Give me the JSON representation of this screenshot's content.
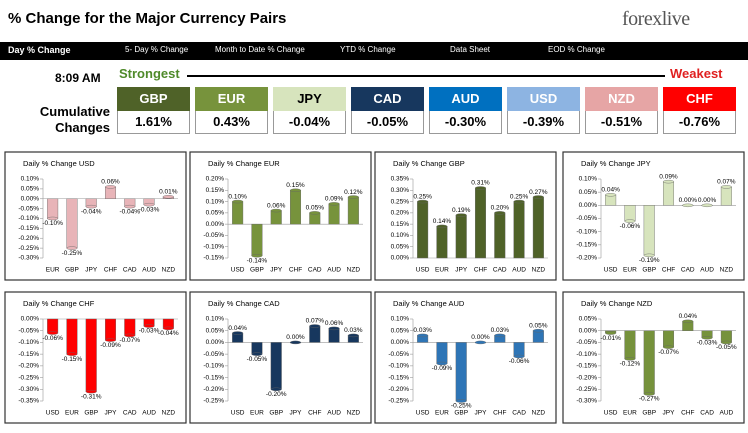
{
  "header": {
    "title": "% Change for the Major Currency Pairs",
    "logo": "forexlive"
  },
  "tabs": [
    "Day % Change",
    "5- Day % Change",
    "Month to Date % Change",
    "YTD % Change",
    "Data Sheet",
    "EOD % Change"
  ],
  "time": "8:09 AM",
  "strongest_label": "Strongest",
  "weakest_label": "Weakest",
  "cumulative_label": "Cumulative Changes",
  "ranking": [
    {
      "currency": "GBP",
      "change": "1.61%",
      "color": "#4f6228"
    },
    {
      "currency": "EUR",
      "change": "0.43%",
      "color": "#77933c"
    },
    {
      "currency": "JPY",
      "change": "-0.04%",
      "color": "#d7e4bd"
    },
    {
      "currency": "CAD",
      "change": "-0.05%",
      "color": "#17375e"
    },
    {
      "currency": "AUD",
      "change": "-0.30%",
      "color": "#0070c0"
    },
    {
      "currency": "USD",
      "change": "-0.39%",
      "color": "#8db4e2"
    },
    {
      "currency": "NZD",
      "change": "-0.51%",
      "color": "#e6a5a5"
    },
    {
      "currency": "CHF",
      "change": "-0.76%",
      "color": "#ff0000"
    }
  ],
  "chart_data": [
    {
      "type": "bar",
      "title": "Daily % Change USD",
      "categories": [
        "EUR",
        "GBP",
        "JPY",
        "CHF",
        "CAD",
        "AUD",
        "NZD"
      ],
      "values": [
        -0.1,
        -0.25,
        -0.04,
        0.06,
        -0.04,
        -0.03,
        0.01
      ],
      "value_labels": [
        "-0.10%",
        "-0.25%",
        "-0.04%",
        "0.06%",
        "-0.04%",
        "-0.03%",
        "0.01%"
      ],
      "color": "#e8b4b8",
      "ylim": [
        -0.3,
        0.1
      ],
      "yticks": [
        {
          "value": 0.1,
          "label": "0.10%"
        },
        {
          "value": 0.05,
          "label": "0.05%"
        },
        {
          "value": 0,
          "label": "0.00%"
        },
        {
          "value": -0.05,
          "label": "-0.05%"
        },
        {
          "value": -0.1,
          "label": "-0.10%"
        },
        {
          "value": -0.15,
          "label": "-0.15%"
        },
        {
          "value": -0.2,
          "label": "-0.20%"
        },
        {
          "value": -0.25,
          "label": "-0.25%"
        },
        {
          "value": -0.3,
          "label": "-0.30%"
        }
      ]
    },
    {
      "type": "bar",
      "title": "Daily % Change EUR",
      "categories": [
        "USD",
        "GBP",
        "JPY",
        "CHF",
        "CAD",
        "AUD",
        "NZD"
      ],
      "values": [
        0.1,
        -0.14,
        0.06,
        0.15,
        0.05,
        0.09,
        0.12
      ],
      "value_labels": [
        "0.10%",
        "-0.14%",
        "0.06%",
        "0.15%",
        "0.05%",
        "0.09%",
        "0.12%"
      ],
      "color": "#77933c",
      "ylim": [
        -0.15,
        0.2
      ],
      "yticks": [
        {
          "value": 0.2,
          "label": "0.20%"
        },
        {
          "value": 0.15,
          "label": "0.15%"
        },
        {
          "value": 0.1,
          "label": "0.10%"
        },
        {
          "value": 0.05,
          "label": "0.05%"
        },
        {
          "value": 0,
          "label": "0.00%"
        },
        {
          "value": -0.05,
          "label": "-0.05%"
        },
        {
          "value": -0.1,
          "label": "-0.10%"
        },
        {
          "value": -0.15,
          "label": "-0.15%"
        }
      ]
    },
    {
      "type": "bar",
      "title": "Daily % Change GBP",
      "categories": [
        "USD",
        "EUR",
        "JPY",
        "CHF",
        "CAD",
        "AUD",
        "NZD"
      ],
      "values": [
        0.25,
        0.14,
        0.19,
        0.31,
        0.2,
        0.25,
        0.27
      ],
      "value_labels": [
        "0.25%",
        "0.14%",
        "0.19%",
        "0.31%",
        "0.20%",
        "0.25%",
        "0.27%"
      ],
      "color": "#4f6228",
      "ylim": [
        0,
        0.35
      ],
      "yticks": [
        {
          "value": 0.35,
          "label": "0.35%"
        },
        {
          "value": 0.3,
          "label": "0.30%"
        },
        {
          "value": 0.25,
          "label": "0.25%"
        },
        {
          "value": 0.2,
          "label": "0.20%"
        },
        {
          "value": 0.15,
          "label": "0.15%"
        },
        {
          "value": 0.1,
          "label": "0.10%"
        },
        {
          "value": 0.05,
          "label": "0.05%"
        },
        {
          "value": 0,
          "label": "0.00%"
        }
      ]
    },
    {
      "type": "bar",
      "title": "Daily % Change JPY",
      "categories": [
        "USD",
        "EUR",
        "GBP",
        "CHF",
        "CAD",
        "AUD",
        "NZD"
      ],
      "values": [
        0.04,
        -0.06,
        -0.19,
        0.09,
        0,
        0,
        0.07
      ],
      "value_labels": [
        "0.04%",
        "-0.06%",
        "-0.19%",
        "0.09%",
        "0.00%",
        "0.00%",
        "0.07%"
      ],
      "color": "#d7e4bd",
      "ylim": [
        -0.2,
        0.1
      ],
      "yticks": [
        {
          "value": 0.1,
          "label": "0.10%"
        },
        {
          "value": 0.05,
          "label": "0.05%"
        },
        {
          "value": 0,
          "label": "0.00%"
        },
        {
          "value": -0.05,
          "label": "-0.05%"
        },
        {
          "value": -0.1,
          "label": "-0.10%"
        },
        {
          "value": -0.15,
          "label": "-0.15%"
        },
        {
          "value": -0.2,
          "label": "-0.20%"
        }
      ]
    },
    {
      "type": "bar",
      "title": "Daily % Change CHF",
      "categories": [
        "USD",
        "EUR",
        "GBP",
        "JPY",
        "CAD",
        "AUD",
        "NZD"
      ],
      "values": [
        -0.06,
        -0.15,
        -0.31,
        -0.09,
        -0.07,
        -0.03,
        -0.04
      ],
      "value_labels": [
        "-0.06%",
        "-0.15%",
        "-0.31%",
        "-0.09%",
        "-0.07%",
        "-0.03%",
        "-0.04%"
      ],
      "color": "#ff0000",
      "ylim": [
        -0.35,
        0
      ],
      "yticks": [
        {
          "value": 0,
          "label": "0.00%"
        },
        {
          "value": -0.05,
          "label": "-0.05%"
        },
        {
          "value": -0.1,
          "label": "-0.10%"
        },
        {
          "value": -0.15,
          "label": "-0.15%"
        },
        {
          "value": -0.2,
          "label": "-0.20%"
        },
        {
          "value": -0.25,
          "label": "-0.25%"
        },
        {
          "value": -0.3,
          "label": "-0.30%"
        },
        {
          "value": -0.35,
          "label": "-0.35%"
        }
      ]
    },
    {
      "type": "bar",
      "title": "Daily % Change CAD",
      "categories": [
        "USD",
        "EUR",
        "GBP",
        "JPY",
        "CHF",
        "AUD",
        "NZD"
      ],
      "values": [
        0.04,
        -0.05,
        -0.2,
        0,
        0.07,
        0.06,
        0.03
      ],
      "value_labels": [
        "0.04%",
        "-0.05%",
        "-0.20%",
        "0.00%",
        "0.07%",
        "0.06%",
        "0.03%"
      ],
      "color": "#17375e",
      "ylim": [
        -0.25,
        0.1
      ],
      "yticks": [
        {
          "value": 0.1,
          "label": "0.10%"
        },
        {
          "value": 0.05,
          "label": "0.05%"
        },
        {
          "value": 0,
          "label": "0.00%"
        },
        {
          "value": -0.05,
          "label": "-0.05%"
        },
        {
          "value": -0.1,
          "label": "-0.10%"
        },
        {
          "value": -0.15,
          "label": "-0.15%"
        },
        {
          "value": -0.2,
          "label": "-0.20%"
        },
        {
          "value": -0.25,
          "label": "-0.25%"
        }
      ]
    },
    {
      "type": "bar",
      "title": "Daily % Change AUD",
      "categories": [
        "USD",
        "EUR",
        "GBP",
        "JPY",
        "CHF",
        "CAD",
        "NZD"
      ],
      "values": [
        0.03,
        -0.09,
        -0.25,
        0,
        0.03,
        -0.06,
        0.05
      ],
      "value_labels": [
        "0.03%",
        "-0.09%",
        "-0.25%",
        "0.00%",
        "0.03%",
        "-0.06%",
        "0.05%"
      ],
      "color": "#2e75b6",
      "ylim": [
        -0.25,
        0.1
      ],
      "yticks": [
        {
          "value": 0.1,
          "label": "0.10%"
        },
        {
          "value": 0.05,
          "label": "0.05%"
        },
        {
          "value": 0,
          "label": "0.00%"
        },
        {
          "value": -0.05,
          "label": "-0.05%"
        },
        {
          "value": -0.1,
          "label": "-0.10%"
        },
        {
          "value": -0.15,
          "label": "-0.15%"
        },
        {
          "value": -0.2,
          "label": "-0.20%"
        },
        {
          "value": -0.25,
          "label": "-0.25%"
        }
      ]
    },
    {
      "type": "bar",
      "title": "Daily % Change NZD",
      "categories": [
        "USD",
        "EUR",
        "GBP",
        "JPY",
        "CHF",
        "CAD",
        "AUD"
      ],
      "values": [
        -0.01,
        -0.12,
        -0.27,
        -0.07,
        0.04,
        -0.03,
        -0.05
      ],
      "value_labels": [
        "-0.01%",
        "-0.12%",
        "-0.27%",
        "-0.07%",
        "0.04%",
        "-0.03%",
        "-0.05%"
      ],
      "color": "#76923c",
      "ylim": [
        -0.3,
        0.05
      ],
      "yticks": [
        {
          "value": 0.05,
          "label": "0.05%"
        },
        {
          "value": 0,
          "label": "0.00%"
        },
        {
          "value": -0.05,
          "label": "-0.05%"
        },
        {
          "value": -0.1,
          "label": "-0.10%"
        },
        {
          "value": -0.15,
          "label": "-0.15%"
        },
        {
          "value": -0.2,
          "label": "-0.20%"
        },
        {
          "value": -0.25,
          "label": "-0.25%"
        },
        {
          "value": -0.3,
          "label": "-0.30%"
        }
      ]
    }
  ]
}
